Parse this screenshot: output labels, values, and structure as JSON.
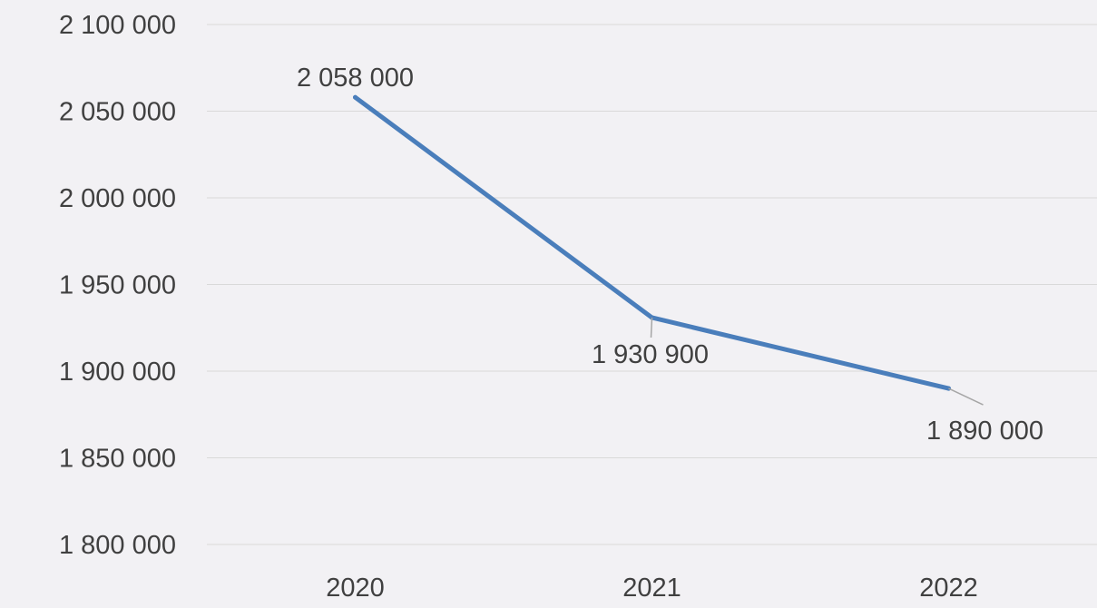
{
  "chart_data": {
    "type": "line",
    "title": "",
    "xlabel": "",
    "ylabel": "",
    "categories": [
      "2020",
      "2021",
      "2022"
    ],
    "series": [
      {
        "values": [
          2058000,
          1930900,
          1890000
        ],
        "data_labels": [
          "2 058 000",
          "1 930 900",
          "1 890 000"
        ],
        "color": "#4a7ebb"
      }
    ],
    "ylim": [
      1800000,
      2100000
    ],
    "yticks": [
      1800000,
      1850000,
      1900000,
      1950000,
      2000000,
      2050000,
      2100000
    ],
    "ytick_labels": [
      "1 800 000",
      "1 850 000",
      "1 900 000",
      "1 950 000",
      "2 000 000",
      "2 050 000",
      "2 100 000"
    ],
    "grid": true,
    "legend": "none",
    "colors": {
      "background": "#f2f1f4",
      "gridline": "#d9d9d9",
      "text": "#404040",
      "leader_line": "#a6a6a6"
    }
  }
}
